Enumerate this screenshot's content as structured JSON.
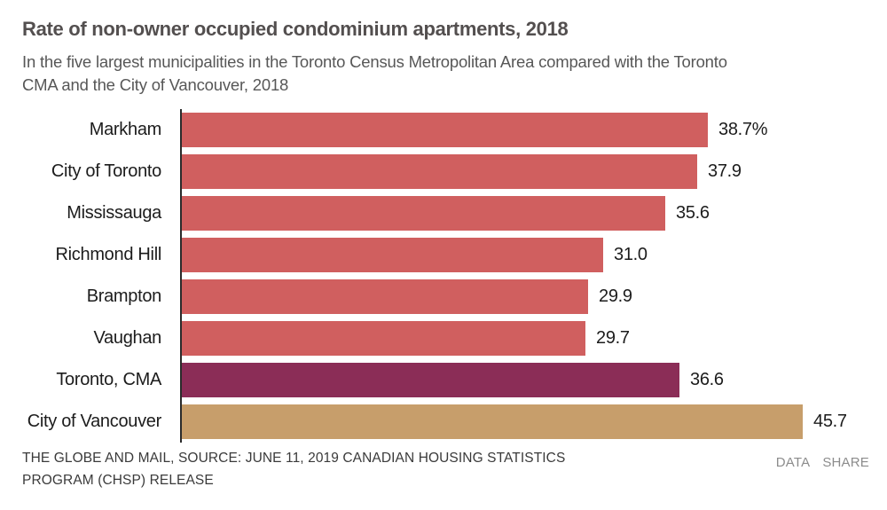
{
  "header": {
    "title": "Rate of non-owner occupied condominium apartments, 2018",
    "subtitle_lines": [
      "In the five largest municipalities in the Toronto Census Metropolitan Area compared with the Toronto",
      "CMA and the City of Vancouver, 2018"
    ]
  },
  "chart_data": {
    "type": "bar",
    "orientation": "horizontal",
    "title": "Rate of non-owner occupied condominium apartments, 2018",
    "categories": [
      "Markham",
      "City of Toronto",
      "Mississauga",
      "Richmond Hill",
      "Brampton",
      "Vaughan",
      "Toronto, CMA",
      "City of Vancouver"
    ],
    "values": [
      38.7,
      37.9,
      35.6,
      31.0,
      29.9,
      29.7,
      36.6,
      45.7
    ],
    "value_labels": [
      "38.7%",
      "37.9",
      "35.6",
      "31.0",
      "29.9",
      "29.7",
      "36.6",
      "45.7"
    ],
    "unit": "percent",
    "xlim": [
      0,
      46
    ],
    "grid": false,
    "legend": false,
    "bar_colors": [
      "#d05f5f",
      "#d05f5f",
      "#d05f5f",
      "#d05f5f",
      "#d05f5f",
      "#d05f5f",
      "#8b2d57",
      "#c79e6b"
    ],
    "colors": {
      "municipality_bar": "#d05f5f",
      "toronto_cma_bar": "#8b2d57",
      "vancouver_bar": "#c79e6b",
      "axis_line": "#2b2b2b"
    }
  },
  "footer": {
    "source_lines": [
      "THE GLOBE AND MAIL, SOURCE: JUNE 11, 2019 CANADIAN HOUSING STATISTICS",
      "PROGRAM (CHSP) RELEASE"
    ],
    "links": {
      "data_label": "DATA",
      "share_label": "SHARE"
    }
  }
}
